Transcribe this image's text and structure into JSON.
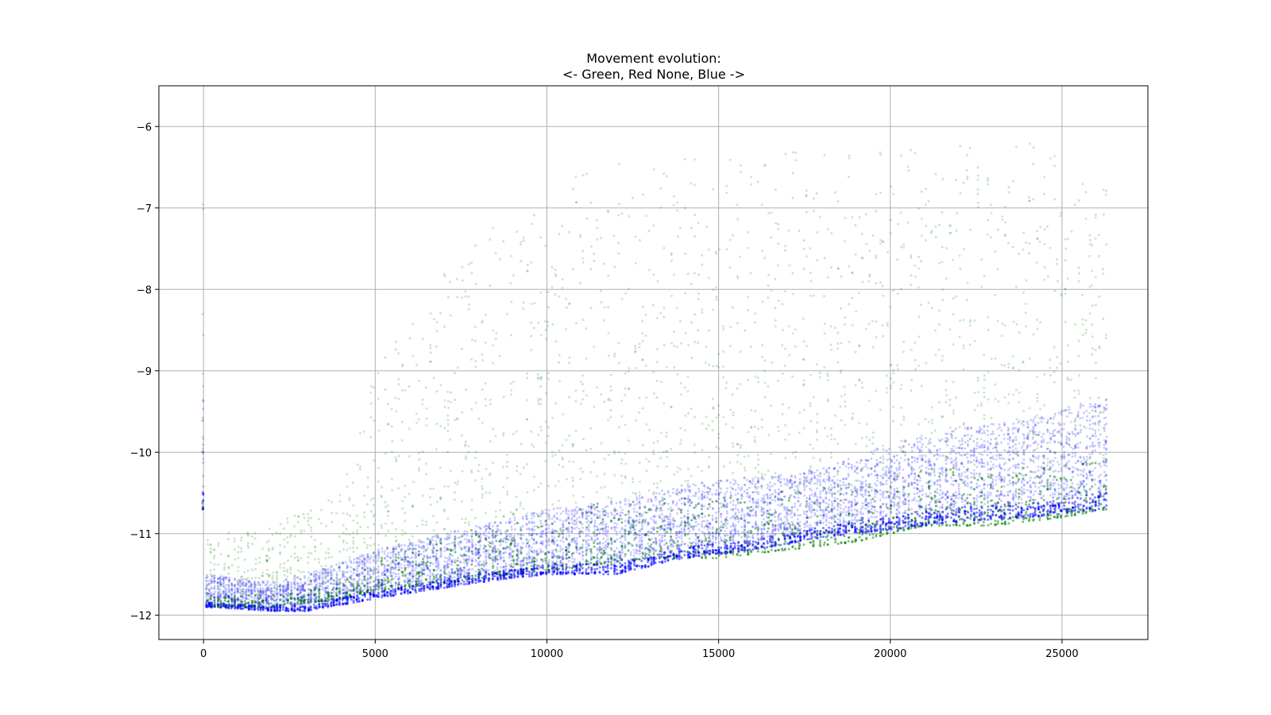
{
  "chart_data": {
    "type": "scatter",
    "title": "Movement evolution:",
    "subtitle": "<- Green, Red None, Blue ->",
    "xlabel": "",
    "ylabel": "",
    "xlim": [
      -1300,
      27500
    ],
    "ylim": [
      -12.3,
      -5.5
    ],
    "x_ticks": [
      0,
      5000,
      10000,
      15000,
      20000,
      25000
    ],
    "x_tick_labels": [
      "0",
      "5000",
      "10000",
      "15000",
      "20000",
      "25000"
    ],
    "y_ticks": [
      -6,
      -7,
      -8,
      -9,
      -10,
      -11,
      -12
    ],
    "y_tick_labels": [
      "−6",
      "−7",
      "−8",
      "−9",
      "−10",
      "−11",
      "−12"
    ],
    "grid": true,
    "legend": "none",
    "x_extent": [
      0,
      26300
    ],
    "series": [
      {
        "color": "#008000",
        "marker_alpha": 0.2,
        "trend": [
          {
            "x": 0,
            "low": -11.9,
            "high": -11.0
          },
          {
            "x": 2000,
            "low": -11.9,
            "high": -10.9
          },
          {
            "x": 4000,
            "low": -11.8,
            "high": -10.5
          },
          {
            "x": 5000,
            "low": -11.7,
            "high": -9.0
          },
          {
            "x": 7000,
            "low": -11.6,
            "high": -7.8
          },
          {
            "x": 9000,
            "low": -11.5,
            "high": -7.0
          },
          {
            "x": 11000,
            "low": -11.4,
            "high": -6.5
          },
          {
            "x": 13000,
            "low": -11.3,
            "high": -6.4
          },
          {
            "x": 15000,
            "low": -11.3,
            "high": -6.4
          },
          {
            "x": 17000,
            "low": -11.2,
            "high": -6.3
          },
          {
            "x": 19000,
            "low": -11.1,
            "high": -6.3
          },
          {
            "x": 21000,
            "low": -10.9,
            "high": -6.2
          },
          {
            "x": 23000,
            "low": -10.9,
            "high": -6.1
          },
          {
            "x": 25000,
            "low": -10.8,
            "high": -6.3
          },
          {
            "x": 26300,
            "low": -10.7,
            "high": -6.6
          }
        ]
      },
      {
        "color": "#0000ff",
        "marker_alpha": 0.2,
        "trend": [
          {
            "x": 0,
            "low": -11.9,
            "high": -11.5
          },
          {
            "x": 2000,
            "low": -11.95,
            "high": -11.6
          },
          {
            "x": 3000,
            "low": -11.95,
            "high": -11.5
          },
          {
            "x": 5000,
            "low": -11.8,
            "high": -11.2
          },
          {
            "x": 8000,
            "low": -11.6,
            "high": -10.9
          },
          {
            "x": 10000,
            "low": -11.5,
            "high": -10.7
          },
          {
            "x": 12000,
            "low": -11.5,
            "high": -10.6
          },
          {
            "x": 14000,
            "low": -11.3,
            "high": -10.4
          },
          {
            "x": 16000,
            "low": -11.2,
            "high": -10.3
          },
          {
            "x": 18000,
            "low": -11.05,
            "high": -10.2
          },
          {
            "x": 20000,
            "low": -10.95,
            "high": -9.9
          },
          {
            "x": 22000,
            "low": -10.85,
            "high": -9.7
          },
          {
            "x": 24000,
            "low": -10.8,
            "high": -9.6
          },
          {
            "x": 26300,
            "low": -10.7,
            "high": -9.3
          }
        ]
      }
    ]
  }
}
